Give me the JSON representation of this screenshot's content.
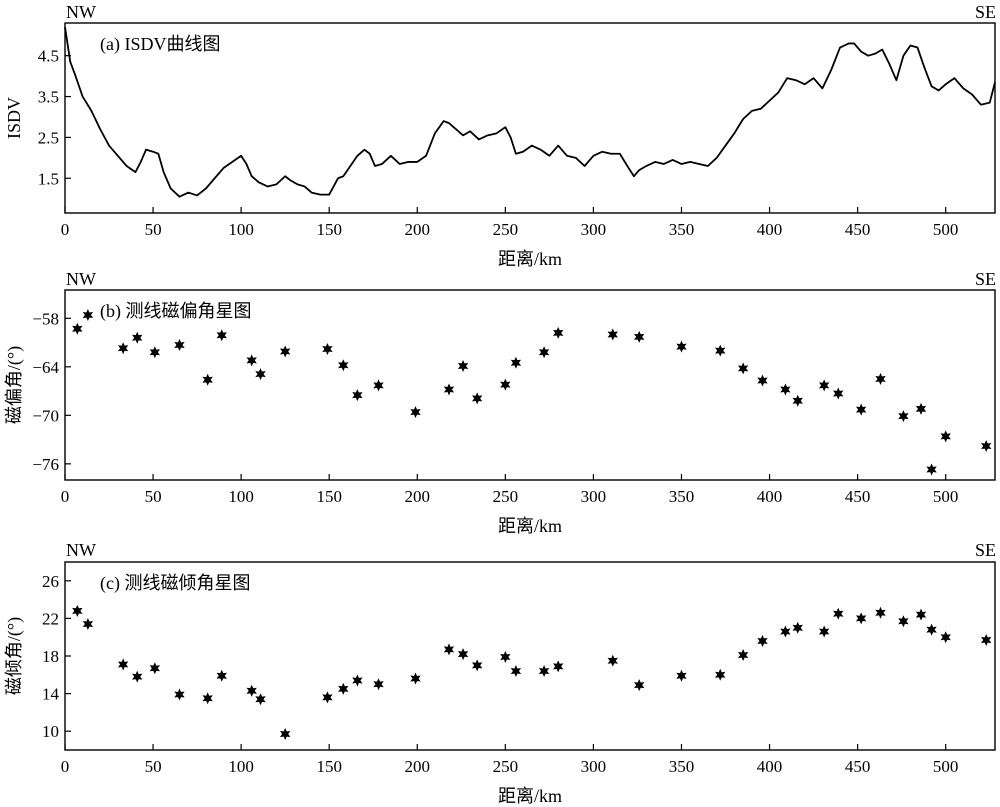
{
  "chart_data": [
    {
      "type": "line",
      "title": "(a) ISDV曲线图",
      "corner_left": "NW",
      "corner_right": "SE",
      "xlabel": "距离/km",
      "ylabel": "ISDV",
      "xlim": [
        0,
        528
      ],
      "ylim": [
        0.65,
        5.3
      ],
      "xticks": [
        0,
        50,
        100,
        150,
        200,
        250,
        300,
        350,
        400,
        450,
        500
      ],
      "yticks": [
        1.5,
        2.5,
        3.5,
        4.5
      ],
      "x": [
        0,
        3,
        6,
        10,
        15,
        20,
        25,
        30,
        35,
        40,
        43,
        46,
        50,
        53,
        56,
        60,
        65,
        70,
        75,
        80,
        85,
        90,
        95,
        100,
        103,
        106,
        110,
        115,
        120,
        125,
        128,
        132,
        136,
        140,
        145,
        150,
        155,
        158,
        162,
        166,
        170,
        173,
        176,
        180,
        185,
        190,
        195,
        200,
        205,
        210,
        215,
        218,
        222,
        226,
        230,
        235,
        240,
        245,
        250,
        253,
        256,
        260,
        265,
        270,
        275,
        280,
        285,
        290,
        295,
        300,
        305,
        310,
        315,
        320,
        323,
        326,
        330,
        335,
        340,
        345,
        350,
        355,
        360,
        365,
        370,
        375,
        380,
        385,
        390,
        395,
        400,
        405,
        410,
        415,
        420,
        425,
        430,
        435,
        440,
        445,
        448,
        452,
        456,
        460,
        464,
        468,
        472,
        476,
        480,
        484,
        488,
        492,
        496,
        500,
        505,
        510,
        515,
        520,
        525,
        528
      ],
      "y": [
        5.2,
        4.35,
        4.0,
        3.5,
        3.15,
        2.7,
        2.3,
        2.05,
        1.8,
        1.65,
        1.9,
        2.2,
        2.15,
        2.1,
        1.65,
        1.25,
        1.05,
        1.15,
        1.08,
        1.25,
        1.5,
        1.75,
        1.9,
        2.05,
        1.85,
        1.55,
        1.4,
        1.3,
        1.35,
        1.55,
        1.45,
        1.35,
        1.3,
        1.15,
        1.1,
        1.1,
        1.5,
        1.55,
        1.8,
        2.05,
        2.2,
        2.1,
        1.8,
        1.85,
        2.05,
        1.85,
        1.9,
        1.9,
        2.05,
        2.6,
        2.9,
        2.85,
        2.7,
        2.55,
        2.65,
        2.45,
        2.55,
        2.6,
        2.75,
        2.5,
        2.1,
        2.15,
        2.3,
        2.2,
        2.05,
        2.3,
        2.05,
        2.0,
        1.8,
        2.05,
        2.15,
        2.1,
        2.1,
        1.75,
        1.55,
        1.7,
        1.8,
        1.9,
        1.85,
        1.95,
        1.85,
        1.9,
        1.85,
        1.8,
        2.0,
        2.3,
        2.6,
        2.95,
        3.15,
        3.2,
        3.4,
        3.6,
        3.95,
        3.9,
        3.8,
        3.95,
        3.7,
        4.15,
        4.7,
        4.8,
        4.8,
        4.6,
        4.5,
        4.55,
        4.65,
        4.3,
        3.9,
        4.5,
        4.75,
        4.7,
        4.2,
        3.75,
        3.65,
        3.8,
        3.95,
        3.7,
        3.55,
        3.3,
        3.35,
        3.85
      ]
    },
    {
      "type": "scatter",
      "title": "(b) 测线磁偏角星图",
      "corner_left": "NW",
      "corner_right": "SE",
      "xlabel": "距离/km",
      "ylabel": "磁偏角/(°)",
      "xlim": [
        0,
        528
      ],
      "ylim": [
        -78,
        -54.5
      ],
      "xticks": [
        0,
        50,
        100,
        150,
        200,
        250,
        300,
        350,
        400,
        450,
        500
      ],
      "yticks": [
        -58,
        -64,
        -70,
        -76
      ],
      "x": [
        7,
        13,
        33,
        41,
        51,
        65,
        81,
        89,
        106,
        111,
        125,
        149,
        158,
        166,
        178,
        199,
        218,
        226,
        234,
        250,
        256,
        272,
        280,
        311,
        326,
        350,
        372,
        385,
        396,
        409,
        416,
        431,
        439,
        452,
        463,
        476,
        486,
        492,
        500,
        523
      ],
      "y": [
        -59.3,
        -57.6,
        -61.7,
        -60.4,
        -62.2,
        -61.3,
        -65.6,
        -60.1,
        -63.2,
        -64.9,
        -62.1,
        -61.8,
        -63.8,
        -67.5,
        -66.3,
        -69.6,
        -66.8,
        -63.9,
        -67.9,
        -66.2,
        -63.5,
        -62.2,
        -59.8,
        -60.0,
        -60.3,
        -61.5,
        -62.0,
        -64.2,
        -65.7,
        -66.8,
        -68.2,
        -66.3,
        -67.3,
        -69.3,
        -65.5,
        -70.1,
        -69.2,
        -76.7,
        -72.6,
        -73.8
      ]
    },
    {
      "type": "scatter",
      "title": "(c) 测线磁倾角星图",
      "corner_left": "NW",
      "corner_right": "SE",
      "xlabel": "距离/km",
      "ylabel": "磁倾角/(°)",
      "xlim": [
        0,
        528
      ],
      "ylim": [
        8,
        28
      ],
      "xticks": [
        0,
        50,
        100,
        150,
        200,
        250,
        300,
        350,
        400,
        450,
        500
      ],
      "yticks": [
        10,
        14,
        18,
        22,
        26
      ],
      "x": [
        7,
        13,
        33,
        41,
        51,
        65,
        81,
        89,
        106,
        111,
        125,
        149,
        158,
        166,
        178,
        199,
        218,
        226,
        234,
        250,
        256,
        272,
        280,
        311,
        326,
        350,
        372,
        385,
        396,
        409,
        416,
        431,
        439,
        452,
        463,
        476,
        486,
        492,
        500,
        523
      ],
      "y": [
        22.8,
        21.4,
        17.1,
        15.8,
        16.7,
        13.9,
        13.5,
        15.9,
        14.3,
        13.4,
        9.7,
        13.6,
        14.5,
        15.4,
        15.0,
        15.6,
        18.7,
        18.2,
        17.0,
        17.9,
        16.4,
        16.4,
        16.9,
        17.5,
        14.9,
        15.9,
        16.0,
        18.1,
        19.6,
        20.6,
        21.0,
        20.6,
        22.5,
        22.0,
        22.6,
        21.7,
        22.4,
        20.8,
        20.0,
        19.7
      ]
    }
  ]
}
